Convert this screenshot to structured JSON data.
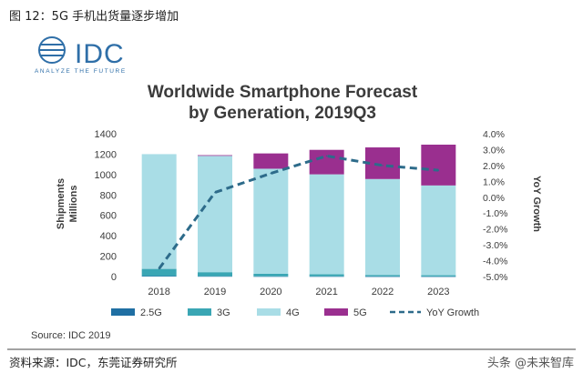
{
  "figure_caption": "图 12：5G 手机出货量逐步增加",
  "source_footer": "资料来源：IDC，东莞证券研究所",
  "watermark": "头条 @未来智库",
  "logo": {
    "brand": "IDC",
    "tagline": "ANALYZE THE FUTURE"
  },
  "colors": {
    "g25": "#1f6fa3",
    "g3": "#3aa6b4",
    "g4": "#a9dde6",
    "g5": "#9a2f8f",
    "yoy": "#2d6b8a",
    "title": "#3b3b3b"
  },
  "chart_data": {
    "type": "bar",
    "stacked": true,
    "title_line1": "Worldwide Smartphone Forecast",
    "title_line2": "by Generation, 2019Q3",
    "categories": [
      "2018",
      "2019",
      "2020",
      "2021",
      "2022",
      "2023"
    ],
    "ylabel_line1": "Shipments",
    "ylabel_line2": "Millions",
    "y2label": "YoY Growth",
    "ylim": [
      0,
      1400
    ],
    "y2lim": [
      -5.0,
      4.0
    ],
    "yticks": [
      "0",
      "200",
      "400",
      "600",
      "800",
      "1000",
      "1200",
      "1400"
    ],
    "y2ticks": [
      "-5.0%",
      "-4.0%",
      "-3.0%",
      "-2.0%",
      "-1.0%",
      "0.0%",
      "1.0%",
      "2.0%",
      "3.0%",
      "4.0%"
    ],
    "series": [
      {
        "name": "2.5G",
        "key": "g25",
        "values": [
          5,
          3,
          2,
          2,
          1,
          1
        ]
      },
      {
        "name": "3G",
        "key": "g3",
        "values": [
          70,
          40,
          25,
          20,
          15,
          12
        ]
      },
      {
        "name": "4G",
        "key": "g4",
        "values": [
          1125,
          1140,
          1030,
          980,
          940,
          880
        ]
      },
      {
        "name": "5G",
        "key": "g5",
        "values": [
          0,
          7,
          150,
          240,
          310,
          400
        ]
      }
    ],
    "line": {
      "name": "YoY Growth",
      "key": "yoy",
      "values": [
        -4.5,
        0.3,
        1.5,
        2.6,
        2.0,
        1.7
      ]
    },
    "source": "Source: IDC 2019"
  }
}
